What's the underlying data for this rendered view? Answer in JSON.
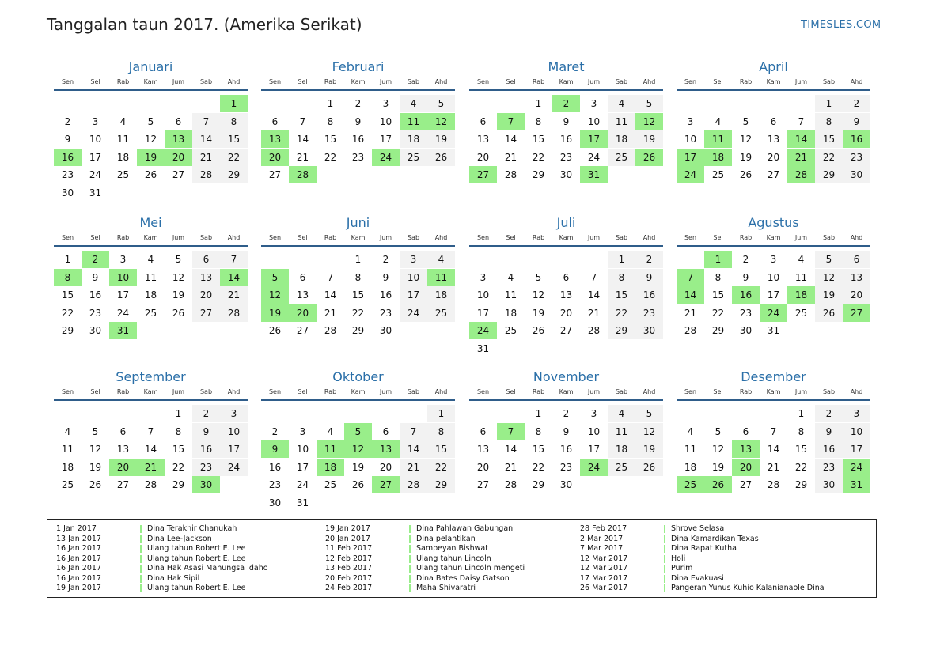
{
  "title": "Tanggalan taun 2017. (Amerika Serikat)",
  "brand": "TIMESLES.COM",
  "weekday_labels": [
    "Sen",
    "Sel",
    "Rab",
    "Kam",
    "Jum",
    "Sab",
    "Ahd"
  ],
  "colors": {
    "accent": "#2a6fa8",
    "holiday": "#99ee8a",
    "weekend": "#f2f2f2",
    "rule": "#2f5d8a"
  },
  "months": [
    {
      "name": "Januari",
      "offset": 6,
      "days": 31,
      "holidays": [
        1,
        13,
        16,
        19,
        20
      ]
    },
    {
      "name": "Februari",
      "offset": 2,
      "days": 28,
      "holidays": [
        11,
        12,
        13,
        20,
        24,
        28
      ]
    },
    {
      "name": "Maret",
      "offset": 2,
      "days": 31,
      "holidays": [
        2,
        7,
        12,
        17,
        26,
        27,
        31
      ]
    },
    {
      "name": "April",
      "offset": 5,
      "days": 30,
      "holidays": [
        11,
        14,
        16,
        17,
        18,
        21,
        24,
        28
      ]
    },
    {
      "name": "Mei",
      "offset": 0,
      "days": 31,
      "holidays": [
        2,
        8,
        10,
        14,
        31
      ]
    },
    {
      "name": "Juni",
      "offset": 3,
      "days": 30,
      "holidays": [
        5,
        11,
        12,
        19,
        20
      ]
    },
    {
      "name": "Juli",
      "offset": 5,
      "days": 31,
      "holidays": [
        24
      ]
    },
    {
      "name": "Agustus",
      "offset": 1,
      "days": 31,
      "holidays": [
        1,
        7,
        14,
        16,
        18,
        24,
        27
      ]
    },
    {
      "name": "September",
      "offset": 4,
      "days": 30,
      "holidays": [
        20,
        21,
        30
      ]
    },
    {
      "name": "Oktober",
      "offset": 6,
      "days": 31,
      "holidays": [
        5,
        9,
        11,
        12,
        13,
        18,
        27
      ]
    },
    {
      "name": "November",
      "offset": 2,
      "days": 30,
      "holidays": [
        7,
        24
      ]
    },
    {
      "name": "Desember",
      "offset": 4,
      "days": 31,
      "holidays": [
        13,
        20,
        24,
        25,
        26,
        31
      ]
    }
  ],
  "legend": [
    [
      {
        "date": "1 Jan 2017",
        "name": "Dina Terakhir Chanukah"
      },
      {
        "date": "13 Jan 2017",
        "name": "Dina Lee-Jackson"
      },
      {
        "date": "16 Jan 2017",
        "name": "Ulang tahun Robert E. Lee"
      },
      {
        "date": "16 Jan 2017",
        "name": "Ulang tahun Robert E. Lee"
      },
      {
        "date": "16 Jan 2017",
        "name": "Dina Hak Asasi Manungsa Idaho"
      },
      {
        "date": "16 Jan 2017",
        "name": "Dina Hak Sipil"
      },
      {
        "date": "19 Jan 2017",
        "name": "Ulang tahun Robert E. Lee"
      }
    ],
    [
      {
        "date": "19 Jan 2017",
        "name": "Dina Pahlawan Gabungan"
      },
      {
        "date": "20 Jan 2017",
        "name": "Dina pelantikan"
      },
      {
        "date": "11 Feb 2017",
        "name": "Sampeyan Bishwat"
      },
      {
        "date": "12 Feb 2017",
        "name": "Ulang tahun Lincoln"
      },
      {
        "date": "13 Feb 2017",
        "name": "Ulang tahun Lincoln mengeti"
      },
      {
        "date": "20 Feb 2017",
        "name": "Dina Bates Daisy Gatson"
      },
      {
        "date": "24 Feb 2017",
        "name": "Maha Shivaratri"
      }
    ],
    [
      {
        "date": "28 Feb 2017",
        "name": "Shrove Selasa"
      },
      {
        "date": "2 Mar 2017",
        "name": "Dina Kamardikan Texas"
      },
      {
        "date": "7 Mar 2017",
        "name": "Dina Rapat Kutha"
      },
      {
        "date": "12 Mar 2017",
        "name": "Holi"
      },
      {
        "date": "12 Mar 2017",
        "name": "Purim"
      },
      {
        "date": "17 Mar 2017",
        "name": "Dina Evakuasi"
      },
      {
        "date": "26 Mar 2017",
        "name": "Pangeran Yunus Kuhio Kalanianaole Dina"
      }
    ]
  ]
}
